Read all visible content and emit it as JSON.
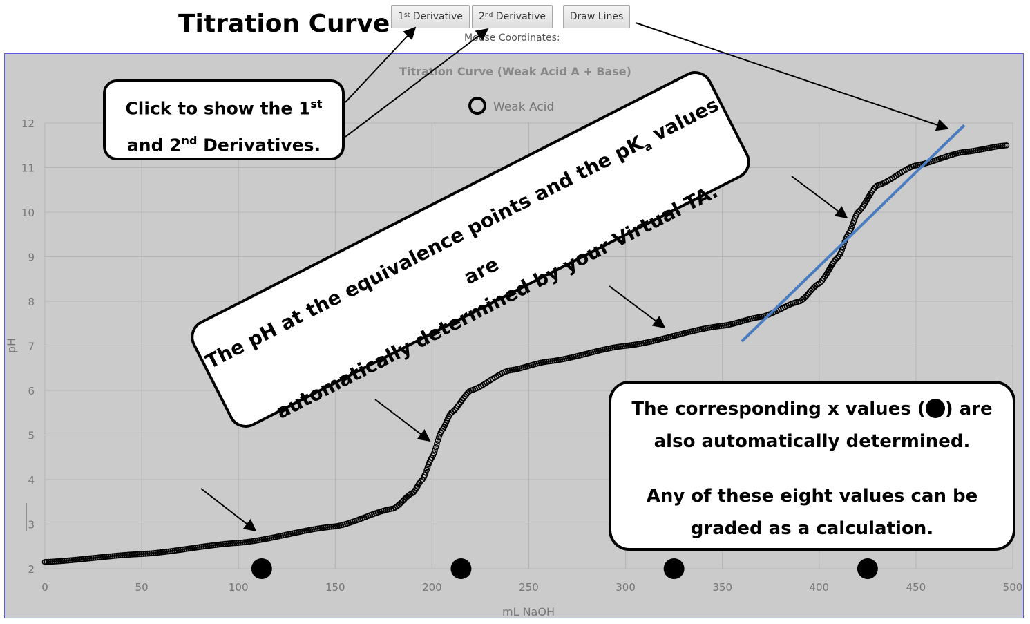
{
  "page": {
    "title": "Titration Curve",
    "mouse_coords_label": "Mouse Coordinates:"
  },
  "toolbar": {
    "first_deriv": {
      "sup": "st",
      "num": "1",
      "label": "Derivative"
    },
    "second_deriv": {
      "sup": "nd",
      "num": "2",
      "label": "Derivative"
    },
    "draw_lines": {
      "label": "Draw Lines"
    }
  },
  "callouts": {
    "derivatives": {
      "line1_pre": "Click to show the 1",
      "line1_sup": "st",
      "line2_pre": "and 2",
      "line2_sup": "nd",
      "line2_post": " Derivatives."
    },
    "pka": {
      "line1_pre": "The pH at the equivalence points and the pK",
      "line1_sub": "a",
      "line1_post": " values are",
      "line2": "automatically determined by your Virtual TA."
    },
    "xvalues": {
      "line1_pre": "The corresponding x values (",
      "line1_post": ") are",
      "line2": "also automatically determined.",
      "line3": "Any of these eight values can be",
      "line4": "graded as a calculation."
    }
  },
  "colors": {
    "plot_bg": "#cbcbcb",
    "grid": "#b4b4b4",
    "series": "#000000",
    "fit_line": "#4a7cc0",
    "frame": "#5a5ae0"
  },
  "chart_data": {
    "type": "scatter",
    "title": "Titration Curve (Weak Acid A + Base)",
    "xlabel": "mL NaOH",
    "ylabel": "pH",
    "xlim": [
      0,
      500
    ],
    "ylim": [
      2,
      12
    ],
    "x_ticks": [
      "0",
      "50",
      "100",
      "150",
      "200",
      "250",
      "300",
      "350",
      "400",
      "450",
      "500"
    ],
    "y_ticks": [
      "2",
      "3",
      "4",
      "5",
      "6",
      "7",
      "8",
      "9",
      "10",
      "11",
      "12"
    ],
    "grid": true,
    "legend": "top-center",
    "series": [
      {
        "name": "Weak Acid",
        "marker": "open-circle",
        "anchors": [
          [
            0,
            2.15
          ],
          [
            50,
            2.33
          ],
          [
            100,
            2.58
          ],
          [
            150,
            2.95
          ],
          [
            180,
            3.35
          ],
          [
            190,
            3.7
          ],
          [
            195,
            4.0
          ],
          [
            200,
            4.5
          ],
          [
            205,
            5.1
          ],
          [
            210,
            5.5
          ],
          [
            220,
            6.0
          ],
          [
            240,
            6.45
          ],
          [
            260,
            6.65
          ],
          [
            300,
            7.0
          ],
          [
            350,
            7.45
          ],
          [
            370,
            7.65
          ],
          [
            390,
            8.0
          ],
          [
            400,
            8.4
          ],
          [
            410,
            9.0
          ],
          [
            415,
            9.5
          ],
          [
            420,
            10.0
          ],
          [
            430,
            10.6
          ],
          [
            450,
            11.05
          ],
          [
            475,
            11.35
          ],
          [
            497,
            11.5
          ]
        ]
      }
    ],
    "fit_line": {
      "x": [
        360,
        475
      ],
      "y": [
        7.1,
        11.95
      ]
    },
    "marked_x_values": [
      112,
      215,
      325,
      425
    ]
  }
}
